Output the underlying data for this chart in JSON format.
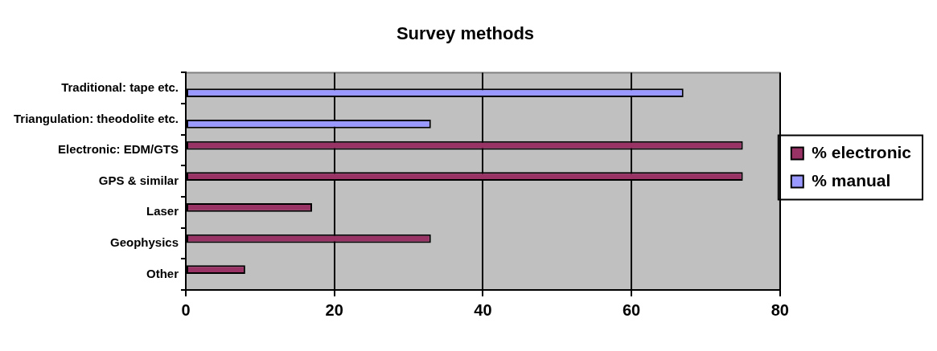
{
  "chart_data": {
    "type": "bar",
    "title": "Survey methods",
    "orientation": "horizontal",
    "categories": [
      "Traditional: tape etc.",
      "Triangulation: theodolite etc.",
      "Electronic: EDM/GTS",
      "GPS & similar",
      "Laser",
      "Geophysics",
      "Other"
    ],
    "series": [
      {
        "name": "% electronic",
        "color": "#993366",
        "values": [
          null,
          null,
          75,
          75,
          17,
          33,
          8
        ]
      },
      {
        "name": "% manual",
        "color": "#9999ff",
        "values": [
          67,
          33,
          null,
          null,
          null,
          null,
          null
        ]
      }
    ],
    "xlim": [
      0,
      80
    ],
    "xticks": [
      0,
      20,
      40,
      60,
      80
    ],
    "grid": "x",
    "legend": "right"
  }
}
